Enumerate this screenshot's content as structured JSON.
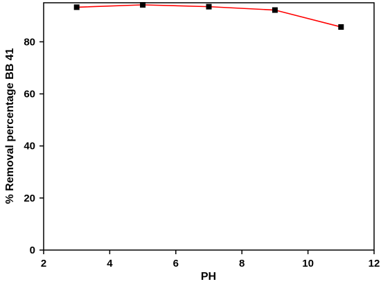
{
  "chart_data": {
    "type": "line",
    "xlabel": "PH",
    "ylabel": "% Removal percentage BB 41",
    "xlim": [
      2,
      12
    ],
    "ylim": [
      0,
      95
    ],
    "xticks": [
      2,
      4,
      6,
      8,
      10,
      12
    ],
    "yticks": [
      0,
      20,
      40,
      60,
      80
    ],
    "grid": false,
    "series": [
      {
        "x": [
          3,
          5,
          7,
          9,
          11
        ],
        "y": [
          93.3,
          94.2,
          93.5,
          92.2,
          85.7
        ],
        "line_color": "#ff0000",
        "marker": "square",
        "marker_color": "#000000"
      }
    ]
  }
}
